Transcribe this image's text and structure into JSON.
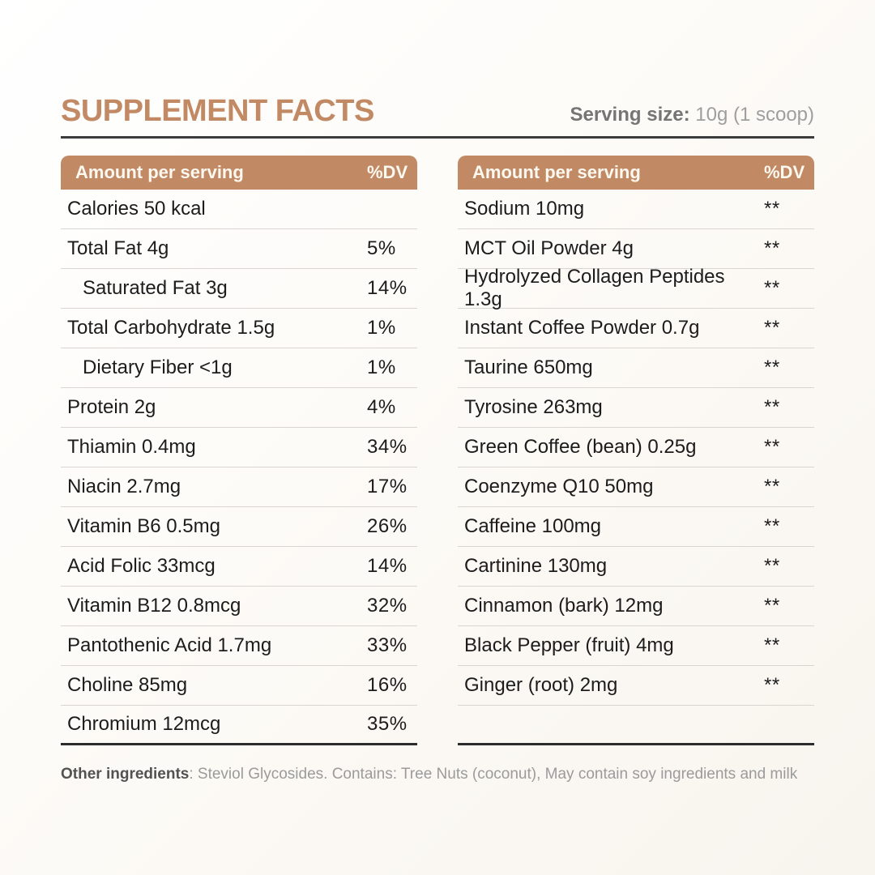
{
  "page": {
    "title": "SUPPLEMENT FACTS",
    "serving_label": "Serving size:",
    "serving_value": " 10g (1 scoop)"
  },
  "colors": {
    "accent": "#c18a64",
    "header_text": "#fdf8f0",
    "row_text": "#1c1c1c",
    "divider": "#d9d6d2",
    "dark_border": "#2c2c2c"
  },
  "tables": [
    {
      "header": {
        "amount": "Amount per serving",
        "dv": "%DV"
      },
      "rows": [
        {
          "label": "Calories 50 kcal",
          "dv": "",
          "indent": false
        },
        {
          "label": "Total Fat 4g",
          "dv": "5%",
          "indent": false
        },
        {
          "label": "Saturated Fat 3g",
          "dv": "14%",
          "indent": true
        },
        {
          "label": "Total Carbohydrate 1.5g",
          "dv": "1%",
          "indent": false
        },
        {
          "label": "Dietary Fiber <1g",
          "dv": "1%",
          "indent": true
        },
        {
          "label": "Protein 2g",
          "dv": "4%",
          "indent": false
        },
        {
          "label": "Thiamin 0.4mg",
          "dv": "34%",
          "indent": false
        },
        {
          "label": "Niacin 2.7mg",
          "dv": "17%",
          "indent": false
        },
        {
          "label": "Vitamin B6 0.5mg",
          "dv": "26%",
          "indent": false
        },
        {
          "label": "Acid Folic 33mcg",
          "dv": "14%",
          "indent": false
        },
        {
          "label": "Vitamin B12 0.8mcg",
          "dv": "32%",
          "indent": false
        },
        {
          "label": "Pantothenic Acid 1.7mg",
          "dv": "33%",
          "indent": false
        },
        {
          "label": "Choline 85mg",
          "dv": "16%",
          "indent": false
        },
        {
          "label": "Chromium 12mcg",
          "dv": "35%",
          "indent": false
        }
      ]
    },
    {
      "header": {
        "amount": "Amount per serving",
        "dv": "%DV"
      },
      "rows": [
        {
          "label": "Sodium 10mg",
          "dv": "**",
          "indent": false
        },
        {
          "label": "MCT Oil Powder 4g",
          "dv": "**",
          "indent": false
        },
        {
          "label": "Hydrolyzed Collagen Peptides 1.3g",
          "dv": "**",
          "indent": false
        },
        {
          "label": "Instant Coffee Powder 0.7g",
          "dv": "**",
          "indent": false
        },
        {
          "label": "Taurine 650mg",
          "dv": "**",
          "indent": false
        },
        {
          "label": "Tyrosine 263mg",
          "dv": "**",
          "indent": false
        },
        {
          "label": "Green Coffee (bean) 0.25g",
          "dv": "**",
          "indent": false
        },
        {
          "label": "Coenzyme Q10 50mg",
          "dv": "**",
          "indent": false
        },
        {
          "label": "Caffeine 100mg",
          "dv": "**",
          "indent": false
        },
        {
          "label": "Cartinine 130mg",
          "dv": "**",
          "indent": false
        },
        {
          "label": "Cinnamon (bark) 12mg",
          "dv": "**",
          "indent": false
        },
        {
          "label": "Black Pepper (fruit) 4mg",
          "dv": "**",
          "indent": false
        },
        {
          "label": "Ginger (root) 2mg",
          "dv": "**",
          "indent": false
        },
        {
          "label": "",
          "dv": "",
          "indent": false
        }
      ]
    }
  ],
  "footer": {
    "bold": "Other ingredients",
    "text": ":  Steviol Glycosides. Contains: Tree Nuts (coconut), May contain soy ingredients and milk"
  }
}
